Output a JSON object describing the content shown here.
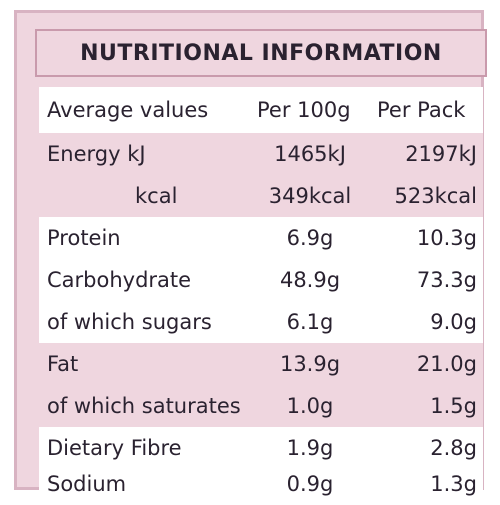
{
  "title": "NUTRITIONAL INFORMATION",
  "header": {
    "label": "Average values",
    "per100g": "Per 100g",
    "perPack": "Per Pack"
  },
  "rows": [
    {
      "label": "Energy kJ",
      "per100g": "1465kJ",
      "perPack": "2197kJ"
    },
    {
      "label": "kcal",
      "per100g": "349kcal",
      "perPack": "523kcal"
    },
    {
      "label": "Protein",
      "per100g": "6.9g",
      "perPack": "10.3g"
    },
    {
      "label": "Carbohydrate",
      "per100g": "48.9g",
      "perPack": "73.3g"
    },
    {
      "label": "of which sugars",
      "per100g": "6.1g",
      "perPack": "9.0g"
    },
    {
      "label": "Fat",
      "per100g": "13.9g",
      "perPack": "21.0g"
    },
    {
      "label": "of which saturates",
      "per100g": "1.0g",
      "perPack": "1.5g"
    },
    {
      "label": "Dietary Fibre",
      "per100g": "1.9g",
      "perPack": "2.8g"
    },
    {
      "label": "Sodium",
      "per100g": "0.9g",
      "perPack": "1.3g"
    }
  ],
  "colors": {
    "panel": "#efd6df",
    "border": "#c99aac",
    "text": "#2a2230"
  }
}
